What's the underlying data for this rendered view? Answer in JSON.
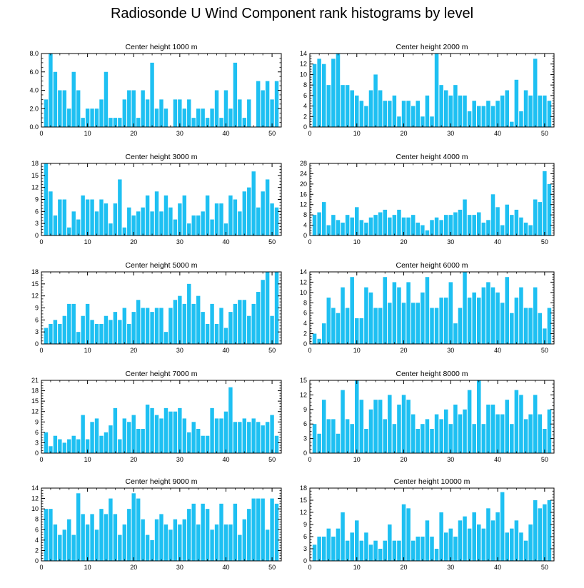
{
  "title": "Radiosonde U Wind Component rank histograms by level",
  "bar_color": "#1ec0f2",
  "chart_data": [
    {
      "type": "bar",
      "title": "Center height 1000 m",
      "xlim": [
        0,
        52
      ],
      "xticks": [
        0,
        10,
        20,
        30,
        40,
        50
      ],
      "ylim": [
        0,
        8
      ],
      "yticks": [
        "0.0",
        "2.0",
        "4.0",
        "6.0",
        "8.0"
      ],
      "values": [
        3,
        8,
        6,
        4,
        4,
        2,
        6,
        4,
        1,
        2,
        2,
        2,
        3,
        6,
        1,
        1,
        1,
        3,
        4,
        4,
        1,
        4,
        3,
        7,
        2,
        3,
        2,
        0,
        3,
        3,
        2,
        3,
        1,
        2,
        2,
        1,
        2,
        4,
        1,
        4,
        2,
        7,
        3,
        1,
        3,
        0,
        5,
        4,
        5,
        3,
        5
      ]
    },
    {
      "type": "bar",
      "title": "Center height 2000 m",
      "xlim": [
        0,
        52
      ],
      "xticks": [
        0,
        10,
        20,
        30,
        40,
        50
      ],
      "ylim": [
        0,
        14
      ],
      "yticks": [
        "0",
        "2",
        "4",
        "6",
        "8",
        "10",
        "12",
        "14"
      ],
      "values": [
        12,
        13,
        12,
        8,
        13,
        14,
        8,
        8,
        7,
        6,
        5,
        4,
        7,
        10,
        7,
        5,
        5,
        6,
        2,
        5,
        5,
        4,
        5,
        2,
        6,
        2,
        14,
        8,
        7,
        6,
        8,
        6,
        6,
        3,
        5,
        4,
        4,
        5,
        4,
        5,
        6,
        7,
        1,
        9,
        3,
        7,
        6,
        13,
        6,
        6,
        5
      ]
    },
    {
      "type": "bar",
      "title": "Center height 3000 m",
      "xlim": [
        0,
        52
      ],
      "xticks": [
        0,
        10,
        20,
        30,
        40,
        50
      ],
      "ylim": [
        0,
        18
      ],
      "yticks": [
        "0",
        "3",
        "6",
        "9",
        "12",
        "15",
        "18"
      ],
      "values": [
        18,
        11,
        5,
        9,
        9,
        2,
        6,
        4,
        10,
        9,
        9,
        6,
        9,
        8,
        3,
        8,
        14,
        2,
        7,
        5,
        6,
        7,
        10,
        6,
        11,
        6,
        10,
        7,
        4,
        8,
        10,
        3,
        5,
        5,
        6,
        10,
        4,
        8,
        8,
        3,
        10,
        9,
        6,
        11,
        12,
        16,
        7,
        11,
        14,
        8,
        7
      ]
    },
    {
      "type": "bar",
      "title": "Center height 4000 m",
      "xlim": [
        0,
        52
      ],
      "xticks": [
        0,
        10,
        20,
        30,
        40,
        50
      ],
      "ylim": [
        0,
        28
      ],
      "yticks": [
        "0",
        "4",
        "8",
        "12",
        "16",
        "20",
        "24",
        "28"
      ],
      "values": [
        8,
        9,
        13,
        4,
        8,
        6,
        5,
        8,
        7,
        11,
        6,
        5,
        7,
        8,
        9,
        10,
        7,
        8,
        10,
        7,
        7,
        8,
        5,
        4,
        2,
        6,
        7,
        6,
        8,
        8,
        9,
        10,
        14,
        8,
        8,
        9,
        5,
        6,
        16,
        11,
        4,
        12,
        8,
        10,
        7,
        5,
        4,
        14,
        13,
        25,
        20
      ]
    },
    {
      "type": "bar",
      "title": "Center height 5000 m",
      "xlim": [
        0,
        52
      ],
      "xticks": [
        0,
        10,
        20,
        30,
        40,
        50
      ],
      "ylim": [
        0,
        18
      ],
      "yticks": [
        "0",
        "3",
        "6",
        "9",
        "12",
        "15",
        "18"
      ],
      "values": [
        4,
        5,
        6,
        5,
        7,
        10,
        10,
        3,
        7,
        10,
        6,
        5,
        5,
        7,
        6,
        8,
        6,
        9,
        5,
        8,
        11,
        9,
        9,
        8,
        9,
        9,
        3,
        9,
        11,
        12,
        10,
        15,
        10,
        12,
        8,
        5,
        10,
        5,
        9,
        4,
        8,
        10,
        11,
        11,
        7,
        10,
        13,
        16,
        18,
        7,
        18
      ]
    },
    {
      "type": "bar",
      "title": "Center height 6000 m",
      "xlim": [
        0,
        52
      ],
      "xticks": [
        0,
        10,
        20,
        30,
        40,
        50
      ],
      "ylim": [
        0,
        14
      ],
      "yticks": [
        "0",
        "2",
        "4",
        "6",
        "8",
        "10",
        "12",
        "14"
      ],
      "values": [
        2,
        1,
        4,
        9,
        7,
        6,
        11,
        7,
        13,
        5,
        5,
        11,
        10,
        7,
        7,
        13,
        8,
        12,
        11,
        8,
        12,
        8,
        8,
        10,
        13,
        7,
        7,
        9,
        9,
        12,
        4,
        7,
        14,
        9,
        10,
        9,
        11,
        12,
        11,
        10,
        8,
        13,
        6,
        9,
        11,
        7,
        7,
        11,
        6,
        3,
        7
      ]
    },
    {
      "type": "bar",
      "title": "Center height 7000 m",
      "xlim": [
        0,
        52
      ],
      "xticks": [
        0,
        10,
        20,
        30,
        40,
        50
      ],
      "ylim": [
        0,
        21
      ],
      "yticks": [
        "0",
        "3",
        "6",
        "9",
        "12",
        "15",
        "18",
        "21"
      ],
      "values": [
        6,
        2,
        5,
        4,
        3,
        4,
        5,
        4,
        11,
        4,
        9,
        10,
        5,
        6,
        8,
        13,
        4,
        10,
        9,
        11,
        7,
        7,
        14,
        13,
        11,
        10,
        13,
        12,
        12,
        13,
        10,
        6,
        9,
        7,
        5,
        5,
        13,
        10,
        10,
        12,
        19,
        9,
        9,
        10,
        9,
        10,
        9,
        8,
        9,
        11,
        5
      ]
    },
    {
      "type": "bar",
      "title": "Center height 8000 m",
      "xlim": [
        0,
        52
      ],
      "xticks": [
        0,
        10,
        20,
        30,
        40,
        50
      ],
      "ylim": [
        0,
        15
      ],
      "yticks": [
        "0",
        "3",
        "6",
        "9",
        "12",
        "15"
      ],
      "values": [
        6,
        4,
        11,
        7,
        7,
        4,
        13,
        7,
        6,
        15,
        11,
        5,
        9,
        11,
        11,
        7,
        12,
        6,
        10,
        12,
        11,
        8,
        5,
        6,
        7,
        5,
        8,
        7,
        9,
        6,
        10,
        8,
        9,
        13,
        6,
        15,
        6,
        10,
        10,
        8,
        8,
        11,
        6,
        13,
        12,
        7,
        8,
        12,
        8,
        5,
        9
      ]
    },
    {
      "type": "bar",
      "title": "Center height 9000 m",
      "xlim": [
        0,
        52
      ],
      "xticks": [
        0,
        10,
        20,
        30,
        40,
        50
      ],
      "ylim": [
        0,
        14
      ],
      "yticks": [
        "0",
        "2",
        "4",
        "6",
        "8",
        "10",
        "12",
        "14"
      ],
      "values": [
        10,
        10,
        7,
        5,
        6,
        8,
        5,
        13,
        9,
        7,
        9,
        6,
        10,
        9,
        12,
        9,
        5,
        7,
        10,
        13,
        12,
        8,
        5,
        4,
        8,
        9,
        7,
        6,
        8,
        7,
        8,
        10,
        11,
        7,
        11,
        10,
        6,
        7,
        11,
        7,
        7,
        11,
        5,
        8,
        10,
        12,
        12,
        12,
        6,
        12,
        11
      ]
    },
    {
      "type": "bar",
      "title": "Center height 10000 m",
      "xlim": [
        0,
        52
      ],
      "xticks": [
        0,
        10,
        20,
        30,
        40,
        50
      ],
      "ylim": [
        0,
        18
      ],
      "yticks": [
        "0",
        "3",
        "6",
        "9",
        "12",
        "15",
        "18"
      ],
      "values": [
        4,
        6,
        6,
        8,
        6,
        8,
        12,
        5,
        7,
        10,
        5,
        7,
        4,
        5,
        3,
        5,
        9,
        5,
        5,
        14,
        13,
        5,
        6,
        6,
        10,
        6,
        3,
        12,
        7,
        8,
        6,
        10,
        11,
        8,
        12,
        9,
        8,
        13,
        10,
        12,
        17,
        7,
        8,
        10,
        7,
        5,
        9,
        15,
        13,
        14,
        15
      ]
    }
  ]
}
